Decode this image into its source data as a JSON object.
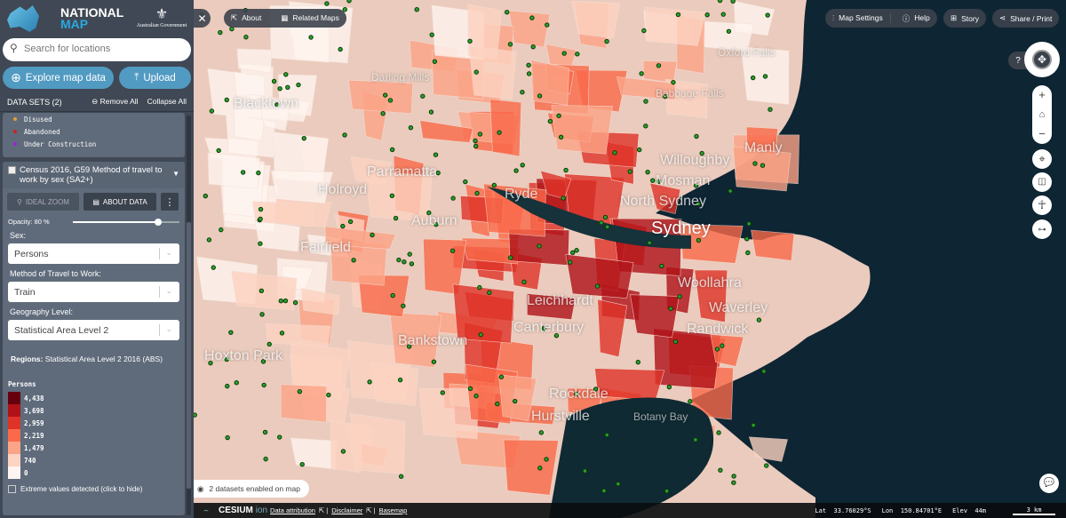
{
  "app": {
    "logo_line1": "NATIONAL",
    "logo_line2": "MAP",
    "gov": "Australian Government"
  },
  "search": {
    "placeholder": "Search for locations"
  },
  "buttons": {
    "explore": "Explore map data",
    "upload": "Upload"
  },
  "datasets": {
    "title": "DATA SETS (2)",
    "remove_all": "Remove All",
    "collapse_all": "Collapse All"
  },
  "prev_legend": [
    {
      "label": "Disused",
      "color": "#e0a030"
    },
    {
      "label": "Abandoned",
      "color": "#d02020"
    },
    {
      "label": "Under Construction",
      "color": "#a020e0"
    }
  ],
  "layer": {
    "title": "Census 2016, G59 Method of travel to work by sex (SA2+)",
    "ideal_zoom": "IDEAL ZOOM",
    "about_data": "ABOUT DATA",
    "opacity_label": "Opacity: 80 %",
    "opacity": 0.8,
    "sex_label": "Sex:",
    "sex_value": "Persons",
    "method_label": "Method of Travel to Work:",
    "method_value": "Train",
    "geo_label": "Geography Level:",
    "geo_value": "Statistical Area Level 2",
    "regions_key": "Regions:",
    "regions_value": "Statistical Area Level 2 2016 (ABS)",
    "legend_title": "Persons",
    "legend": [
      {
        "label": "4,438",
        "color": "#67000d"
      },
      {
        "label": "3,698",
        "color": "#b01218"
      },
      {
        "label": "2,959",
        "color": "#e03328"
      },
      {
        "label": "2,219",
        "color": "#fa6a4a"
      },
      {
        "label": "1,479",
        "color": "#fca487"
      },
      {
        "label": "740",
        "color": "#fdd3c1"
      },
      {
        "label": "0",
        "color": "#fff5f0"
      }
    ],
    "extreme": "Extreme values detected (click to hide)"
  },
  "top": {
    "about": "About",
    "related": "Related Maps",
    "map_settings": "Map Settings",
    "help": "Help",
    "story": "Story",
    "share": "Share / Print"
  },
  "map": {
    "datasets_enabled": "2 datasets enabled on map",
    "places": [
      {
        "name": "Darling Mills",
        "s": "sm"
      },
      {
        "name": "Blacktown",
        "s": "md"
      },
      {
        "name": "Parramatta",
        "s": "md"
      },
      {
        "name": "Holroyd",
        "s": "md"
      },
      {
        "name": "Fairfield",
        "s": "md"
      },
      {
        "name": "Auburn",
        "s": "md"
      },
      {
        "name": "Ryde",
        "s": "md"
      },
      {
        "name": "Bankstown",
        "s": "md"
      },
      {
        "name": "Hoxton Park",
        "s": "md"
      },
      {
        "name": "Leichhardt",
        "s": "md"
      },
      {
        "name": "Canterbury",
        "s": "md"
      },
      {
        "name": "Rockdale",
        "s": "md"
      },
      {
        "name": "Hurstville",
        "s": "md"
      },
      {
        "name": "North Sydney",
        "s": "md"
      },
      {
        "name": "Sydney",
        "s": "lg"
      },
      {
        "name": "Willoughby",
        "s": "md"
      },
      {
        "name": "Mosman",
        "s": "md"
      },
      {
        "name": "Manly",
        "s": "md"
      },
      {
        "name": "Woollahra",
        "s": "md"
      },
      {
        "name": "Waverley",
        "s": "md"
      },
      {
        "name": "Randwick",
        "s": "md"
      },
      {
        "name": "Botany Bay",
        "s": "sm"
      },
      {
        "name": "Oxford Falls",
        "s": "sm"
      },
      {
        "name": "Babbage Falls",
        "s": "sm"
      }
    ]
  },
  "footer": {
    "cesium": "CESIUM",
    "ion": "ion",
    "attribution": "Data attribution",
    "disclaimer": "Disclaimer",
    "basemap": "Basemap",
    "lat": "Lat  33.76029°S",
    "lon": "Lon  150.84701°E",
    "elev": "Elev  44m",
    "scale": "3 km"
  }
}
